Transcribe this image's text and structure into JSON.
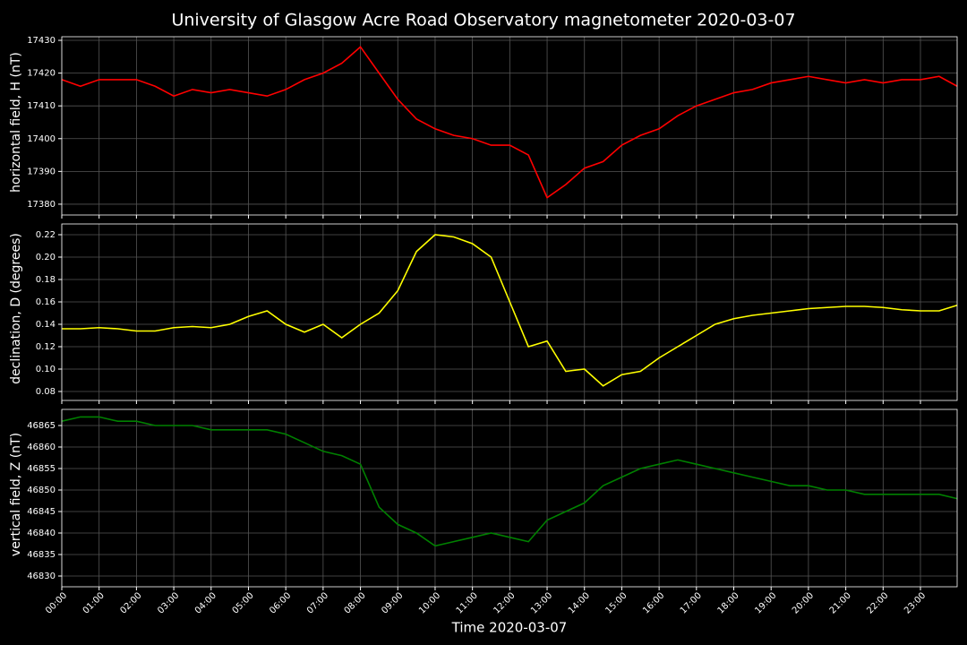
{
  "title": "University of Glasgow Acre Road Observatory magnetometer 2020-03-07",
  "xlabel": "Time 2020-03-07",
  "chart_data": [
    {
      "type": "line",
      "ylabel": "horizontal field, H (nT)",
      "color": "#ff0000",
      "grid": true,
      "x": [
        "00:00",
        "00:30",
        "01:00",
        "01:30",
        "02:00",
        "02:30",
        "03:00",
        "03:30",
        "04:00",
        "04:30",
        "05:00",
        "05:30",
        "06:00",
        "06:30",
        "07:00",
        "07:30",
        "08:00",
        "08:30",
        "09:00",
        "09:30",
        "10:00",
        "10:30",
        "11:00",
        "11:30",
        "12:00",
        "12:30",
        "13:00",
        "13:30",
        "14:00",
        "14:30",
        "15:00",
        "15:30",
        "16:00",
        "16:30",
        "17:00",
        "17:30",
        "18:00",
        "18:30",
        "19:00",
        "19:30",
        "20:00",
        "20:30",
        "21:00",
        "21:30",
        "22:00",
        "22:30",
        "23:00",
        "23:30",
        "23:59"
      ],
      "values": [
        17418,
        17416,
        17418,
        17418,
        17418,
        17416,
        17413,
        17415,
        17414,
        17415,
        17414,
        17413,
        17415,
        17418,
        17420,
        17423,
        17428,
        17420,
        17412,
        17406,
        17403,
        17401,
        17400,
        17398,
        17398,
        17395,
        17382,
        17386,
        17391,
        17393,
        17398,
        17401,
        17403,
        17407,
        17410,
        17412,
        17414,
        17415,
        17417,
        17418,
        17419,
        17418,
        17417,
        17418,
        17417,
        17418,
        17418,
        17419,
        17416
      ],
      "xlim": [
        "00:00",
        "23:59"
      ],
      "xticks": [
        "00:00",
        "01:00",
        "02:00",
        "03:00",
        "04:00",
        "05:00",
        "06:00",
        "07:00",
        "08:00",
        "09:00",
        "10:00",
        "11:00",
        "12:00",
        "13:00",
        "14:00",
        "15:00",
        "16:00",
        "17:00",
        "18:00",
        "19:00",
        "20:00",
        "21:00",
        "22:00",
        "23:00"
      ],
      "ylim": [
        17376.7,
        17431.1
      ],
      "yticks": [
        17380,
        17390,
        17400,
        17410,
        17420,
        17430
      ]
    },
    {
      "type": "line",
      "ylabel": "declination, D (degrees)",
      "color": "#ffff00",
      "grid": true,
      "x": [
        "00:00",
        "00:30",
        "01:00",
        "01:30",
        "02:00",
        "02:30",
        "03:00",
        "03:30",
        "04:00",
        "04:30",
        "05:00",
        "05:30",
        "06:00",
        "06:30",
        "07:00",
        "07:30",
        "08:00",
        "08:30",
        "09:00",
        "09:30",
        "10:00",
        "10:30",
        "11:00",
        "11:30",
        "12:00",
        "12:30",
        "13:00",
        "13:30",
        "14:00",
        "14:30",
        "15:00",
        "15:30",
        "16:00",
        "16:30",
        "17:00",
        "17:30",
        "18:00",
        "18:30",
        "19:00",
        "19:30",
        "20:00",
        "20:30",
        "21:00",
        "21:30",
        "22:00",
        "22:30",
        "23:00",
        "23:30",
        "23:59"
      ],
      "values": [
        0.136,
        0.136,
        0.137,
        0.136,
        0.134,
        0.134,
        0.137,
        0.138,
        0.137,
        0.14,
        0.147,
        0.152,
        0.14,
        0.133,
        0.14,
        0.128,
        0.14,
        0.15,
        0.17,
        0.205,
        0.22,
        0.218,
        0.212,
        0.2,
        0.16,
        0.12,
        0.125,
        0.098,
        0.1,
        0.085,
        0.095,
        0.098,
        0.11,
        0.12,
        0.13,
        0.14,
        0.145,
        0.148,
        0.15,
        0.152,
        0.154,
        0.155,
        0.156,
        0.156,
        0.155,
        0.153,
        0.152,
        0.152,
        0.157
      ],
      "xlim": [
        "00:00",
        "23:59"
      ],
      "xticks": [
        "00:00",
        "01:00",
        "02:00",
        "03:00",
        "04:00",
        "05:00",
        "06:00",
        "07:00",
        "08:00",
        "09:00",
        "10:00",
        "11:00",
        "12:00",
        "13:00",
        "14:00",
        "15:00",
        "16:00",
        "17:00",
        "18:00",
        "19:00",
        "20:00",
        "21:00",
        "22:00",
        "23:00"
      ],
      "ylim": [
        0.072,
        0.2296
      ],
      "yticks": [
        0.08,
        {
          "value": 0.1,
          "label": "0.10"
        },
        0.12,
        0.14,
        0.16,
        0.18,
        {
          "value": 0.2,
          "label": "0.20"
        },
        0.22
      ]
    },
    {
      "type": "line",
      "ylabel": "vertical field, Z (nT)",
      "color": "#008000",
      "grid": true,
      "x": [
        "00:00",
        "00:30",
        "01:00",
        "01:30",
        "02:00",
        "02:30",
        "03:00",
        "03:30",
        "04:00",
        "04:30",
        "05:00",
        "05:30",
        "06:00",
        "06:30",
        "07:00",
        "07:30",
        "08:00",
        "08:30",
        "09:00",
        "09:30",
        "10:00",
        "10:30",
        "11:00",
        "11:30",
        "12:00",
        "12:30",
        "13:00",
        "13:30",
        "14:00",
        "14:30",
        "15:00",
        "15:30",
        "16:00",
        "16:30",
        "17:00",
        "17:30",
        "18:00",
        "18:30",
        "19:00",
        "19:30",
        "20:00",
        "20:30",
        "21:00",
        "21:30",
        "22:00",
        "22:30",
        "23:00",
        "23:30",
        "23:59"
      ],
      "values": [
        46866,
        46867,
        46867,
        46866,
        46866,
        46865,
        46865,
        46865,
        46864,
        46864,
        46864,
        46864,
        46863,
        46861,
        46859,
        46858,
        46856,
        46846,
        46842,
        46840,
        46837,
        46838,
        46839,
        46840,
        46839,
        46838,
        46843,
        46845,
        46847,
        46851,
        46853,
        46855,
        46856,
        46857,
        46856,
        46855,
        46854,
        46853,
        46852,
        46851,
        46851,
        46850,
        46850,
        46849,
        46849,
        46849,
        46849,
        46849,
        46848
      ],
      "xlim": [
        "00:00",
        "23:59"
      ],
      "xticks": [
        "00:00",
        "01:00",
        "02:00",
        "03:00",
        "04:00",
        "05:00",
        "06:00",
        "07:00",
        "08:00",
        "09:00",
        "10:00",
        "11:00",
        "12:00",
        "13:00",
        "14:00",
        "15:00",
        "16:00",
        "17:00",
        "18:00",
        "19:00",
        "20:00",
        "21:00",
        "22:00",
        "23:00"
      ],
      "ylim": [
        46827.5,
        46868.75
      ],
      "yticks": [
        46830,
        46835,
        46840,
        46845,
        46850,
        46855,
        46860,
        46865
      ]
    }
  ]
}
